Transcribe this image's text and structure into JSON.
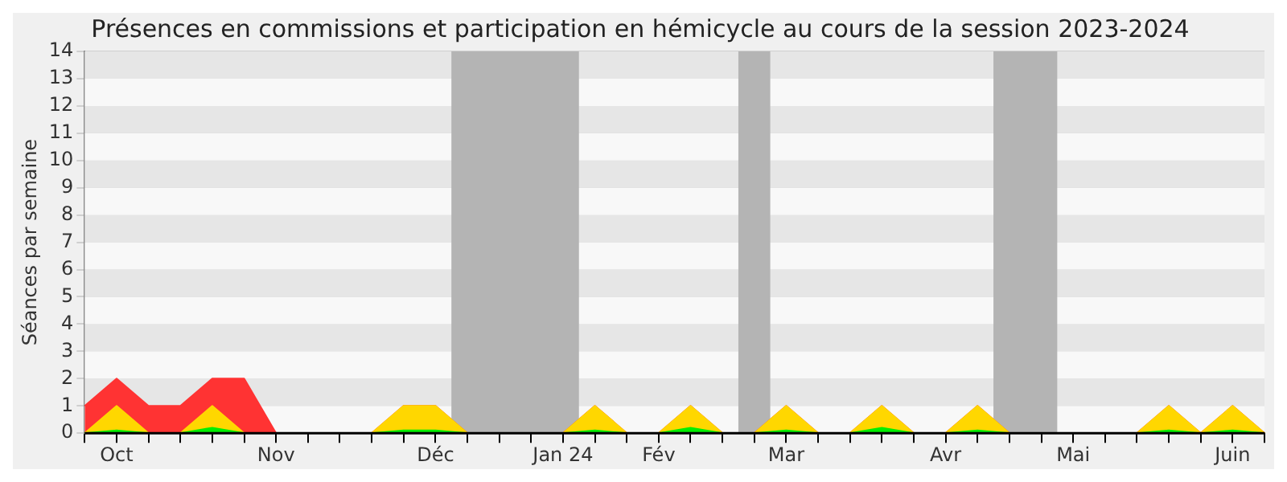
{
  "chart_data": {
    "type": "area",
    "title": "Présences en commissions et participation en hémicycle au cours de la session 2023-2024",
    "ylabel": "Séances par semaine",
    "categories": [
      null,
      "Oct",
      null,
      null,
      null,
      null,
      "Nov",
      null,
      null,
      null,
      null,
      "Déc",
      null,
      null,
      null,
      "Jan 24",
      null,
      null,
      "Fév",
      null,
      null,
      null,
      "Mar",
      null,
      null,
      null,
      null,
      "Avr",
      null,
      null,
      null,
      "Mai",
      null,
      null,
      null,
      null,
      "Juin",
      null
    ],
    "series": [
      {
        "color": "#ff3333",
        "values": [
          1,
          2,
          1,
          1,
          2,
          2,
          0,
          0,
          0,
          0,
          1,
          1,
          0,
          0,
          0,
          0,
          1,
          0,
          0,
          1,
          0,
          0,
          1,
          0,
          0,
          1,
          0,
          0,
          1,
          0,
          0,
          0,
          0,
          0,
          1,
          0,
          1,
          0
        ]
      },
      {
        "color": "#ffd700",
        "values": [
          0,
          1,
          0,
          0,
          1,
          0,
          0,
          0,
          0,
          0,
          1,
          1,
          0,
          0,
          0,
          0,
          1,
          0,
          0,
          1,
          0,
          0,
          1,
          0,
          0,
          1,
          0,
          0,
          1,
          0,
          0,
          0,
          0,
          0,
          1,
          0,
          1,
          0
        ]
      },
      {
        "color": "#00ee00",
        "values": [
          0,
          0.1,
          0,
          0,
          0.2,
          0,
          0,
          0,
          0,
          0,
          0.1,
          0.1,
          0,
          0,
          0,
          0,
          0.1,
          0,
          0,
          0.2,
          0,
          0,
          0.1,
          0,
          0,
          0.2,
          0,
          0,
          0.1,
          0,
          0,
          0,
          0,
          0,
          0.1,
          0,
          0.1,
          0
        ]
      }
    ],
    "ylim": [
      0,
      14
    ],
    "yticks": [
      0,
      1,
      2,
      3,
      4,
      5,
      6,
      7,
      8,
      9,
      10,
      11,
      12,
      13,
      14
    ],
    "grid": "y",
    "legend": false
  }
}
